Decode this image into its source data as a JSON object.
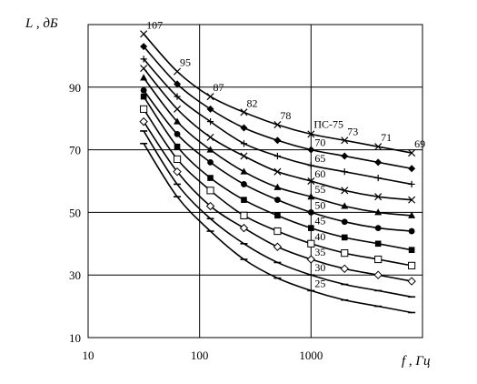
{
  "chart_data": {
    "type": "line",
    "title": "",
    "xlabel": "f , Гц",
    "ylabel": "L , дБ",
    "x_scale": "log",
    "xlim": [
      10,
      10000
    ],
    "ylim": [
      10,
      110
    ],
    "grid": true,
    "x_ticks": [
      10,
      100,
      1000
    ],
    "x_tick_labels": [
      "10",
      "100",
      "1000"
    ],
    "y_ticks": [
      10,
      30,
      50,
      70,
      90
    ],
    "y_tick_labels": [
      "10",
      "30",
      "50",
      "70",
      "90"
    ],
    "x": [
      31.5,
      63,
      125,
      250,
      500,
      1000,
      2000,
      4000,
      8000
    ],
    "series": [
      {
        "name": "ПС-75",
        "marker": "x",
        "values": [
          107,
          95,
          87,
          82,
          78,
          75,
          73,
          71,
          69
        ],
        "point_labels": [
          "107",
          "95",
          "87",
          "82",
          "78",
          "",
          "73",
          "71",
          "69"
        ]
      },
      {
        "name": "70",
        "marker": "diamond-filled",
        "values": [
          103,
          91,
          83,
          77,
          73,
          70,
          68,
          66,
          64
        ]
      },
      {
        "name": "65",
        "marker": "plus",
        "values": [
          99,
          87,
          79,
          72,
          68,
          65,
          63,
          61,
          59
        ]
      },
      {
        "name": "60",
        "marker": "x",
        "values": [
          96,
          83,
          74,
          68,
          63,
          60,
          57,
          55,
          54
        ]
      },
      {
        "name": "55",
        "marker": "triangle-filled",
        "values": [
          93,
          79,
          70,
          63,
          58,
          55,
          52,
          50,
          49
        ]
      },
      {
        "name": "50",
        "marker": "circle-filled",
        "values": [
          89,
          75,
          66,
          59,
          54,
          50,
          47,
          45,
          44
        ]
      },
      {
        "name": "45",
        "marker": "square-filled",
        "values": [
          87,
          71,
          61,
          54,
          49,
          45,
          42,
          40,
          38
        ]
      },
      {
        "name": "40",
        "marker": "square-open",
        "values": [
          83,
          67,
          57,
          49,
          44,
          40,
          37,
          35,
          33
        ]
      },
      {
        "name": "35",
        "marker": "diamond-open",
        "values": [
          79,
          63,
          52,
          45,
          39,
          35,
          32,
          30,
          28
        ]
      },
      {
        "name": "30",
        "marker": "dash",
        "values": [
          76,
          59,
          48,
          40,
          34,
          30,
          27,
          25,
          23
        ]
      },
      {
        "name": "25",
        "marker": "dash",
        "values": [
          72,
          55,
          44,
          35,
          29,
          25,
          22,
          20,
          18
        ]
      }
    ]
  },
  "colors": {
    "line": "#000000",
    "grid": "#000000",
    "background": "#ffffff"
  }
}
